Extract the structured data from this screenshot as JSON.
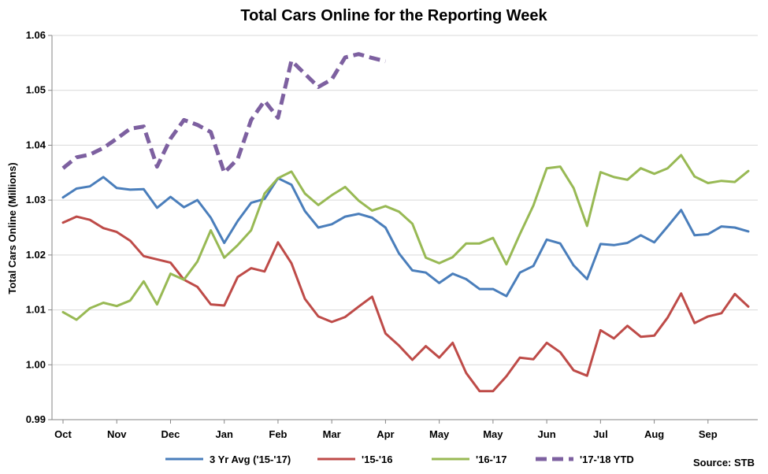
{
  "chart_data": {
    "type": "line",
    "title": "Total Cars Online for the Reporting Week",
    "ylabel": "Total Cars Online (Millions)",
    "xlabel": "",
    "ylim": [
      0.99,
      1.06
    ],
    "yticks": [
      "0.99",
      "1.00",
      "1.01",
      "1.02",
      "1.03",
      "1.04",
      "1.05",
      "1.06"
    ],
    "grid": "horizontal",
    "legend_position": "bottom",
    "x_tick_labels": [
      {
        "label": "Oct",
        "week": 0
      },
      {
        "label": "Nov",
        "week": 4
      },
      {
        "label": "Dec",
        "week": 8
      },
      {
        "label": "Jan",
        "week": 12
      },
      {
        "label": "Feb",
        "week": 16
      },
      {
        "label": "Mar",
        "week": 20
      },
      {
        "label": "Apr",
        "week": 24
      },
      {
        "label": "May",
        "week": 28
      },
      {
        "label": "May",
        "week": 32
      },
      {
        "label": "Jun",
        "week": 36
      },
      {
        "label": "Jul",
        "week": 40
      },
      {
        "label": "Aug",
        "week": 44
      },
      {
        "label": "Sep",
        "week": 48
      }
    ],
    "series": [
      {
        "name": "3 Yr Avg ('15-'17)",
        "color": "#4a7ebb",
        "dashed": false,
        "values": [
          1.0305,
          1.0321,
          1.0325,
          1.0342,
          1.0322,
          1.0319,
          1.032,
          1.0286,
          1.0306,
          1.0287,
          1.03,
          1.0268,
          1.0222,
          1.0262,
          1.0295,
          1.0302,
          1.034,
          1.0328,
          1.028,
          1.025,
          1.0256,
          1.027,
          1.0275,
          1.0268,
          1.025,
          1.0203,
          1.0172,
          1.0168,
          1.0149,
          1.0166,
          1.0156,
          1.0138,
          1.0138,
          1.0125,
          1.0168,
          1.018,
          1.0228,
          1.0221,
          1.0181,
          1.0156,
          1.022,
          1.0218,
          1.0222,
          1.0236,
          1.0223,
          1.0252,
          1.0282,
          1.0236,
          1.0238,
          1.0252,
          1.025,
          1.0243
        ]
      },
      {
        "name": "'15-'16",
        "color": "#be4b48",
        "dashed": false,
        "values": [
          1.0259,
          1.027,
          1.0264,
          1.0249,
          1.0242,
          1.0226,
          1.0198,
          1.0192,
          1.0186,
          1.0155,
          1.0142,
          1.011,
          1.0108,
          1.016,
          1.0176,
          1.017,
          1.0223,
          1.0185,
          1.012,
          1.0088,
          1.0078,
          1.0087,
          1.0106,
          1.0124,
          1.0057,
          1.0035,
          1.0009,
          1.0034,
          1.0013,
          1.004,
          0.9985,
          0.9952,
          0.9952,
          0.9979,
          1.0013,
          1.001,
          1.004,
          1.0023,
          0.999,
          0.998,
          1.0063,
          1.0048,
          1.0071,
          1.0051,
          1.0053,
          1.0086,
          1.013,
          1.0076,
          1.0088,
          1.0094,
          1.0129,
          1.0106
        ]
      },
      {
        "name": "'16-'17",
        "color": "#98b954",
        "dashed": false,
        "values": [
          1.0096,
          1.0082,
          1.0103,
          1.0113,
          1.0107,
          1.0117,
          1.0152,
          1.011,
          1.0166,
          1.0155,
          1.0188,
          1.0245,
          1.0195,
          1.0218,
          1.0245,
          1.0312,
          1.034,
          1.0352,
          1.0312,
          1.0291,
          1.0309,
          1.0324,
          1.0299,
          1.0281,
          1.0289,
          1.0279,
          1.0257,
          1.0195,
          1.0185,
          1.0196,
          1.0221,
          1.0221,
          1.0231,
          1.0183,
          1.0238,
          1.029,
          1.0358,
          1.0361,
          1.0322,
          1.0253,
          1.0351,
          1.0342,
          1.0337,
          1.0358,
          1.0348,
          1.0358,
          1.0382,
          1.0343,
          1.0331,
          1.0335,
          1.0333,
          1.0353
        ]
      },
      {
        "name": "'17-'18 YTD",
        "color": "#7d60a0",
        "dashed": true,
        "values": [
          1.0358,
          1.0378,
          1.0383,
          1.0395,
          1.0412,
          1.043,
          1.0434,
          1.0361,
          1.0412,
          1.0446,
          1.0437,
          1.0424,
          1.035,
          1.0375,
          1.0446,
          1.0481,
          1.045,
          1.0554,
          1.053,
          1.0506,
          1.052,
          1.056,
          1.0566,
          1.0559,
          1.0553
        ]
      }
    ],
    "source_text": "Source:  STB"
  }
}
